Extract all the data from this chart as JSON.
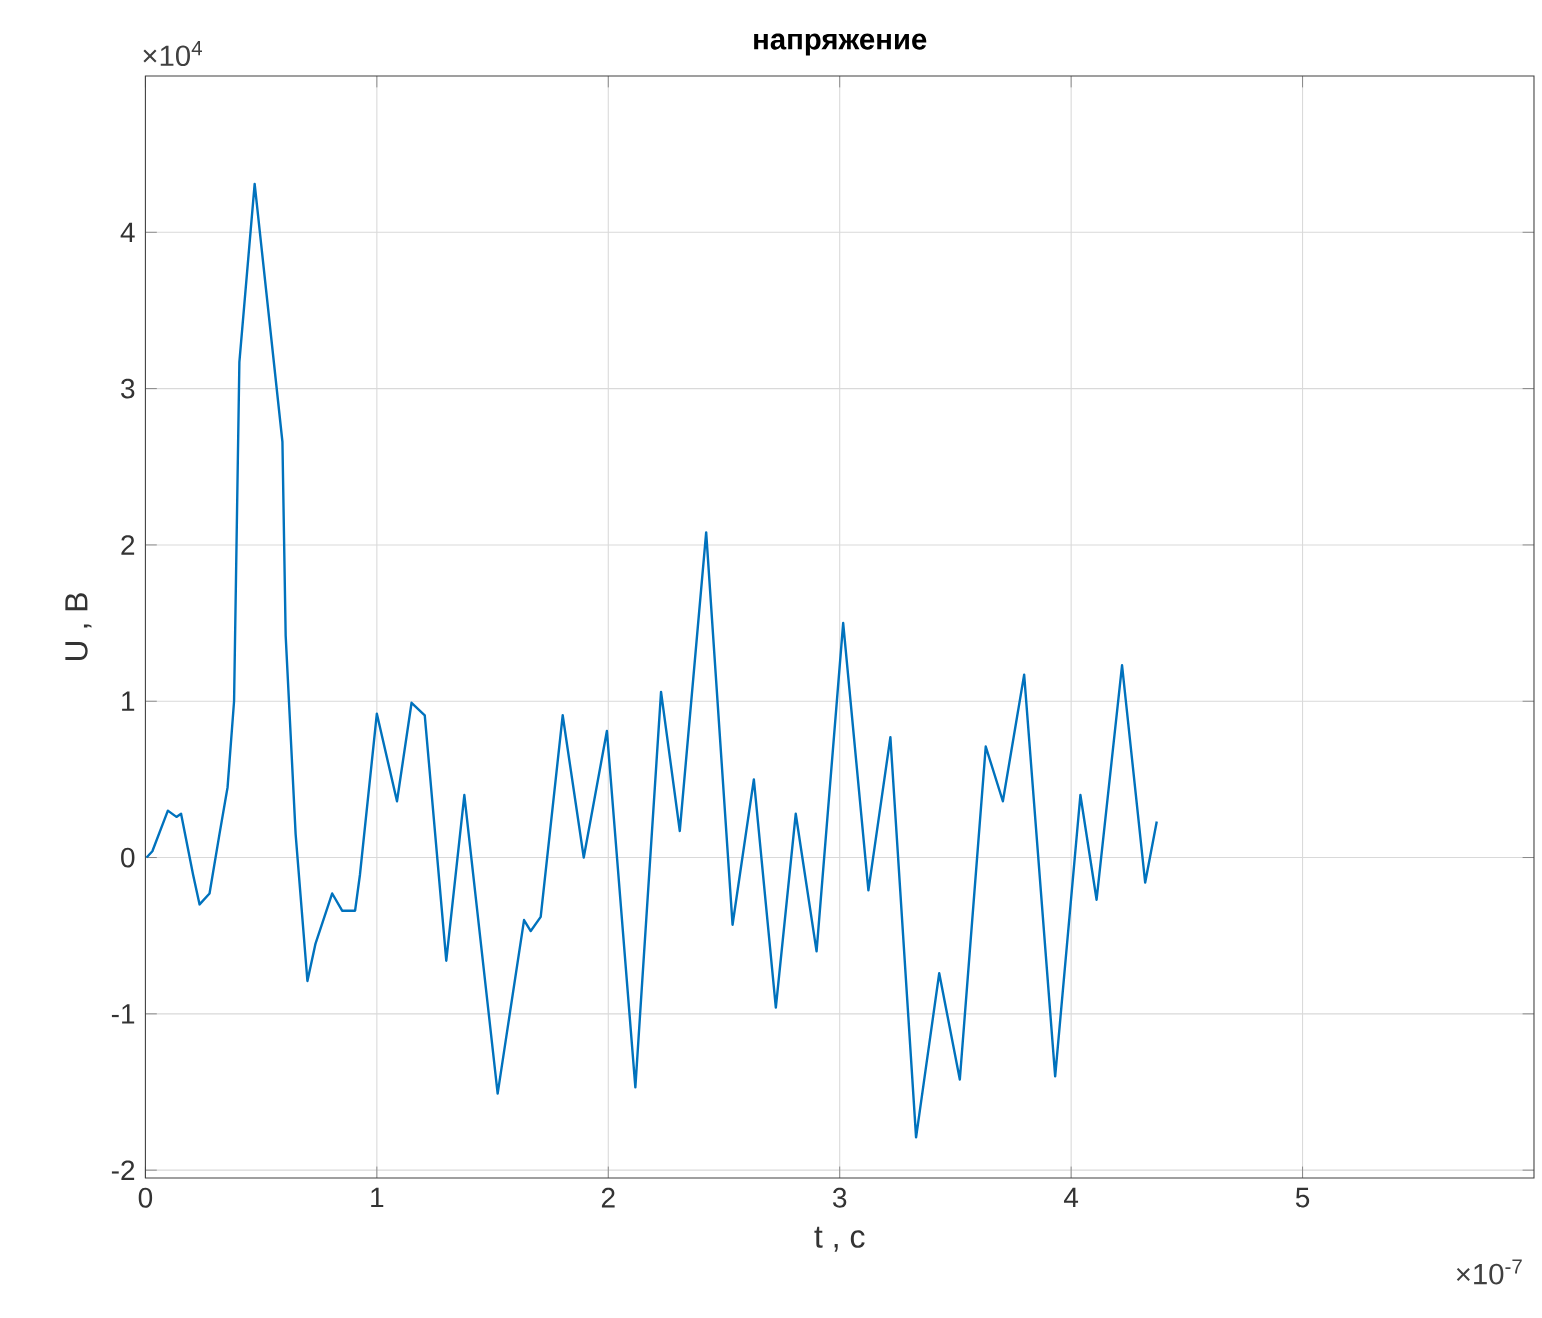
{
  "chart_data": {
    "type": "line",
    "title": "напряжение",
    "xlabel": "t , c",
    "ylabel": "U , B",
    "annotations": [
      "×10$^{4}$",
      "×10$^{-7}$"
    ],
    "xlim": [
      0,
      6
    ],
    "ylim": [
      -2.05,
      5
    ],
    "xticks": [
      0,
      1,
      2,
      3,
      4,
      5
    ],
    "yticks": [
      -2,
      -1,
      0,
      1,
      2,
      3,
      4
    ],
    "grid": true,
    "line_style": "solid",
    "marker": "none",
    "series": [
      {
        "color": "#0072bd",
        "x": [
          0.005,
          0.03,
          0.097,
          0.134,
          0.154,
          0.206,
          0.234,
          0.277,
          0.32,
          0.355,
          0.383,
          0.406,
          0.472,
          0.592,
          0.606,
          0.649,
          0.7,
          0.735,
          0.807,
          0.85,
          0.906,
          0.927,
          1.0,
          1.087,
          1.15,
          1.207,
          1.3,
          1.378,
          1.522,
          1.636,
          1.665,
          1.708,
          1.803,
          1.894,
          1.994,
          2.117,
          2.228,
          2.309,
          2.423,
          2.537,
          2.629,
          2.724,
          2.81,
          2.9,
          3.015,
          3.124,
          3.219,
          3.33,
          3.43,
          3.519,
          3.631,
          3.705,
          3.797,
          3.931,
          4.04,
          4.11,
          4.22,
          4.32,
          4.37
        ],
        "values": [
          0,
          0.04,
          0.3,
          0.26,
          0.28,
          -0.11,
          -0.3,
          -0.23,
          0.15,
          0.45,
          1.0,
          3.17,
          4.31,
          2.66,
          1.42,
          0.15,
          -0.79,
          -0.55,
          -0.23,
          -0.34,
          -0.34,
          -0.11,
          0.92,
          0.36,
          0.99,
          0.91,
          -0.66,
          0.4,
          -1.51,
          -0.4,
          -0.47,
          -0.38,
          0.91,
          0,
          0.81,
          -1.47,
          1.06,
          0.17,
          2.08,
          -0.43,
          0.5,
          -0.96,
          0.28,
          -0.6,
          1.5,
          -0.21,
          0.77,
          -1.79,
          -0.74,
          -1.42,
          0.71,
          0.36,
          1.17,
          -1.4,
          0.4,
          -0.27,
          1.23,
          -0.16,
          0.23
        ]
      }
    ]
  }
}
